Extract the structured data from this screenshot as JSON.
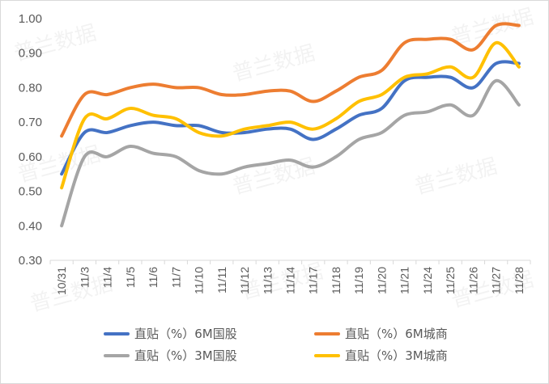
{
  "watermark": "普兰数据",
  "chart_data": {
    "type": "line",
    "title": "",
    "xlabel": "",
    "ylabel": "",
    "ylim": [
      0.3,
      1.0
    ],
    "yticks": [
      "0.30",
      "0.40",
      "0.50",
      "0.60",
      "0.70",
      "0.80",
      "0.90",
      "1.00"
    ],
    "grid": false,
    "legend_position": "bottom",
    "smooth": true,
    "categories": [
      "10/31",
      "11/3",
      "11/4",
      "11/5",
      "11/6",
      "11/7",
      "11/10",
      "11/11",
      "11/12",
      "11/13",
      "11/14",
      "11/17",
      "11/18",
      "11/19",
      "11/20",
      "11/21",
      "11/24",
      "11/25",
      "11/26",
      "11/27",
      "11/28"
    ],
    "series": [
      {
        "name": "直贴（%）6M国股",
        "color": "#4472c4",
        "values": [
          0.55,
          0.67,
          0.67,
          0.69,
          0.7,
          0.69,
          0.69,
          0.67,
          0.67,
          0.68,
          0.68,
          0.65,
          0.68,
          0.72,
          0.74,
          0.82,
          0.83,
          0.83,
          0.8,
          0.87,
          0.87
        ]
      },
      {
        "name": "直贴（%）6M城商",
        "color": "#ed7d31",
        "values": [
          0.66,
          0.78,
          0.78,
          0.8,
          0.81,
          0.8,
          0.8,
          0.78,
          0.78,
          0.79,
          0.79,
          0.76,
          0.79,
          0.83,
          0.85,
          0.93,
          0.94,
          0.94,
          0.91,
          0.98,
          0.98
        ]
      },
      {
        "name": "直贴（%）3M国股",
        "color": "#a5a5a5",
        "values": [
          0.4,
          0.6,
          0.6,
          0.63,
          0.61,
          0.6,
          0.56,
          0.55,
          0.57,
          0.58,
          0.59,
          0.57,
          0.6,
          0.65,
          0.67,
          0.72,
          0.73,
          0.75,
          0.72,
          0.82,
          0.75
        ]
      },
      {
        "name": "直贴（%）3M城商",
        "color": "#ffc000",
        "values": [
          0.51,
          0.71,
          0.71,
          0.74,
          0.72,
          0.71,
          0.67,
          0.66,
          0.68,
          0.69,
          0.7,
          0.68,
          0.71,
          0.76,
          0.78,
          0.83,
          0.84,
          0.86,
          0.83,
          0.93,
          0.86
        ]
      }
    ]
  }
}
